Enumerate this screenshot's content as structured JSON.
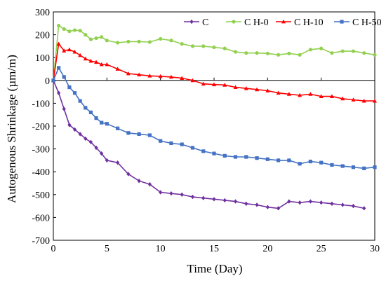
{
  "chart_data": {
    "type": "line",
    "title": "",
    "xlabel": "Time (Day)",
    "ylabel": "Autogenous Shrinkage (µm/m)",
    "xlim": [
      0,
      30
    ],
    "ylim": [
      -700,
      300
    ],
    "x_ticks": [
      "0",
      "5",
      "10",
      "15",
      "20",
      "25",
      "30"
    ],
    "y_ticks": [
      "300",
      "200",
      "100",
      "0",
      "-100",
      "-200",
      "-300",
      "-400",
      "-500",
      "-600",
      "-700"
    ],
    "grid": false,
    "legend_position": "top-right",
    "series": [
      {
        "name": "C",
        "color": "#7030a0",
        "marker": "diamond",
        "points": [
          [
            0,
            0
          ],
          [
            0.5,
            -55
          ],
          [
            1,
            -125
          ],
          [
            1.5,
            -195
          ],
          [
            2,
            -215
          ],
          [
            2.5,
            -235
          ],
          [
            3,
            -255
          ],
          [
            3.5,
            -270
          ],
          [
            4,
            -295
          ],
          [
            4.5,
            -320
          ],
          [
            5,
            -350
          ],
          [
            6,
            -360
          ],
          [
            7,
            -410
          ],
          [
            8,
            -440
          ],
          [
            9,
            -455
          ],
          [
            10,
            -490
          ],
          [
            11,
            -495
          ],
          [
            12,
            -500
          ],
          [
            13,
            -510
          ],
          [
            14,
            -515
          ],
          [
            15,
            -520
          ],
          [
            16,
            -525
          ],
          [
            17,
            -530
          ],
          [
            18,
            -540
          ],
          [
            19,
            -545
          ],
          [
            20,
            -555
          ],
          [
            21,
            -560
          ],
          [
            22,
            -530
          ],
          [
            23,
            -535
          ],
          [
            24,
            -530
          ],
          [
            25,
            -535
          ],
          [
            26,
            -540
          ],
          [
            27,
            -545
          ],
          [
            28,
            -550
          ],
          [
            29,
            -560
          ]
        ]
      },
      {
        "name": "C H-0",
        "color": "#92d050",
        "marker": "circle",
        "points": [
          [
            0,
            0
          ],
          [
            0.5,
            240
          ],
          [
            1,
            225
          ],
          [
            1.5,
            215
          ],
          [
            2,
            220
          ],
          [
            2.5,
            218
          ],
          [
            3,
            200
          ],
          [
            3.5,
            180
          ],
          [
            4,
            185
          ],
          [
            4.5,
            190
          ],
          [
            5,
            175
          ],
          [
            6,
            165
          ],
          [
            7,
            170
          ],
          [
            8,
            170
          ],
          [
            9,
            168
          ],
          [
            10,
            182
          ],
          [
            11,
            175
          ],
          [
            12,
            160
          ],
          [
            13,
            150
          ],
          [
            14,
            150
          ],
          [
            15,
            145
          ],
          [
            16,
            140
          ],
          [
            17,
            125
          ],
          [
            18,
            120
          ],
          [
            19,
            120
          ],
          [
            20,
            118
          ],
          [
            21,
            112
          ],
          [
            22,
            118
          ],
          [
            23,
            112
          ],
          [
            24,
            135
          ],
          [
            25,
            140
          ],
          [
            26,
            120
          ],
          [
            27,
            128
          ],
          [
            28,
            128
          ],
          [
            29,
            120
          ],
          [
            30,
            112
          ]
        ]
      },
      {
        "name": "C H-10",
        "color": "#ff0000",
        "marker": "triangle",
        "points": [
          [
            0,
            0
          ],
          [
            0.5,
            160
          ],
          [
            1,
            130
          ],
          [
            1.5,
            135
          ],
          [
            2,
            125
          ],
          [
            2.5,
            110
          ],
          [
            3,
            95
          ],
          [
            3.5,
            85
          ],
          [
            4,
            80
          ],
          [
            4.5,
            70
          ],
          [
            5,
            70
          ],
          [
            6,
            50
          ],
          [
            7,
            30
          ],
          [
            8,
            25
          ],
          [
            9,
            20
          ],
          [
            10,
            18
          ],
          [
            11,
            15
          ],
          [
            12,
            10
          ],
          [
            13,
            0
          ],
          [
            14,
            -15
          ],
          [
            15,
            -18
          ],
          [
            16,
            -20
          ],
          [
            17,
            -30
          ],
          [
            18,
            -35
          ],
          [
            19,
            -40
          ],
          [
            20,
            -45
          ],
          [
            21,
            -55
          ],
          [
            22,
            -60
          ],
          [
            23,
            -65
          ],
          [
            24,
            -60
          ],
          [
            25,
            -70
          ],
          [
            26,
            -70
          ],
          [
            27,
            -80
          ],
          [
            28,
            -85
          ],
          [
            29,
            -90
          ],
          [
            30,
            -90
          ]
        ]
      },
      {
        "name": "C H-50",
        "color": "#4472c4",
        "marker": "square",
        "points": [
          [
            0,
            0
          ],
          [
            0.5,
            55
          ],
          [
            1,
            15
          ],
          [
            1.5,
            -30
          ],
          [
            2,
            -55
          ],
          [
            2.5,
            -90
          ],
          [
            3,
            -120
          ],
          [
            3.5,
            -140
          ],
          [
            4,
            -165
          ],
          [
            4.5,
            -185
          ],
          [
            5,
            -190
          ],
          [
            6,
            -210
          ],
          [
            7,
            -230
          ],
          [
            8,
            -235
          ],
          [
            9,
            -240
          ],
          [
            10,
            -265
          ],
          [
            11,
            -275
          ],
          [
            12,
            -280
          ],
          [
            13,
            -295
          ],
          [
            14,
            -310
          ],
          [
            15,
            -320
          ],
          [
            16,
            -330
          ],
          [
            17,
            -335
          ],
          [
            18,
            -335
          ],
          [
            19,
            -340
          ],
          [
            20,
            -345
          ],
          [
            21,
            -350
          ],
          [
            22,
            -350
          ],
          [
            23,
            -365
          ],
          [
            24,
            -355
          ],
          [
            25,
            -360
          ],
          [
            26,
            -370
          ],
          [
            27,
            -375
          ],
          [
            28,
            -380
          ],
          [
            29,
            -385
          ],
          [
            30,
            -380
          ]
        ]
      }
    ]
  }
}
